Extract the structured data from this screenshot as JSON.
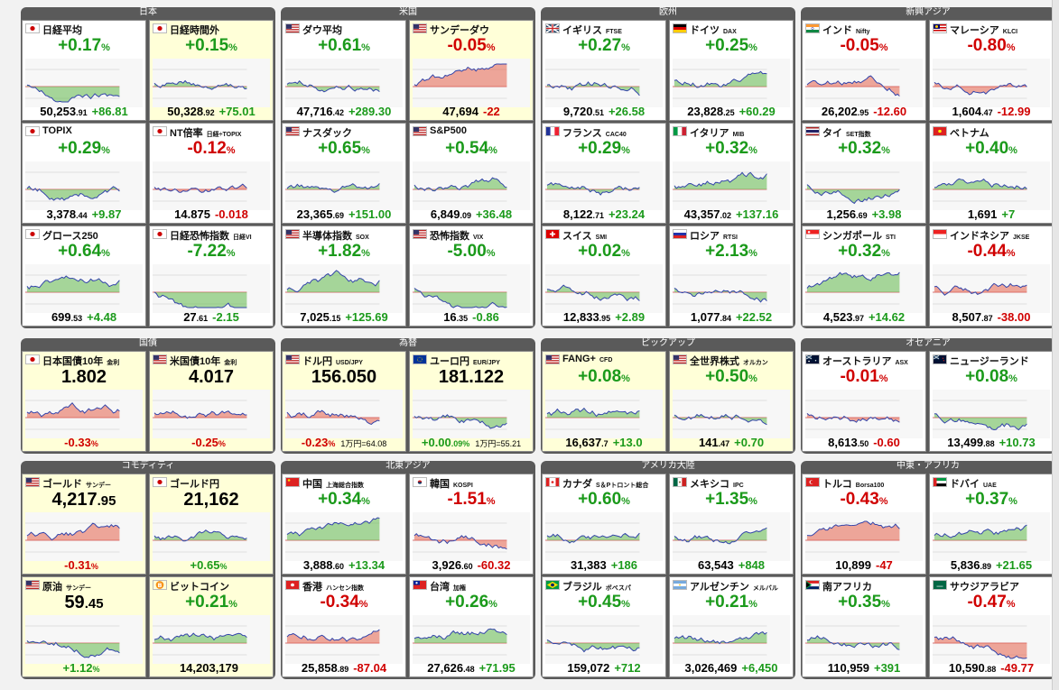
{
  "groups": [
    {
      "title": "日本",
      "tiles": [
        {
          "name": "日経平均",
          "suffix": "",
          "flag": "jp",
          "pct": "+0.17",
          "unit": "%",
          "dir": "up",
          "i": "50,253",
          "d": ".91",
          "ch": "+86.81",
          "cd": "up",
          "sub": ""
        },
        {
          "name": "日経時間外",
          "suffix": "",
          "flag": "jp",
          "pct": "+0.15",
          "unit": "%",
          "dir": "up",
          "i": "50,328",
          "d": ".92",
          "ch": "+75.01",
          "cd": "up",
          "sub": ""
        },
        {
          "name": "TOPIX",
          "suffix": "",
          "flag": "jp",
          "pct": "+0.29",
          "unit": "%",
          "dir": "up",
          "i": "3,378",
          "d": ".44",
          "ch": "+9.87",
          "cd": "up",
          "sub": ""
        },
        {
          "name": "NT倍率",
          "suffix": "日経÷TOPIX",
          "flag": "jp",
          "pct": "-0.12",
          "unit": "%",
          "dir": "dn",
          "i": "14.875",
          "d": "",
          "ch": "-0.018",
          "cd": "dn",
          "sub": ""
        },
        {
          "name": "グロース250",
          "suffix": "",
          "flag": "jp",
          "pct": "+0.64",
          "unit": "%",
          "dir": "up",
          "i": "699",
          "d": ".53",
          "ch": "+4.48",
          "cd": "up",
          "sub": ""
        },
        {
          "name": "日経恐怖指数",
          "suffix": "日経VI",
          "flag": "jp",
          "pct": "-7.22",
          "unit": "%",
          "dir": "up",
          "i": "27",
          "d": ".61",
          "ch": "-2.15",
          "cd": "up",
          "sub": ""
        }
      ]
    },
    {
      "title": "米国",
      "tiles": [
        {
          "name": "ダウ平均",
          "suffix": "",
          "flag": "us",
          "pct": "+0.61",
          "unit": "%",
          "dir": "up",
          "i": "47,716",
          "d": ".42",
          "ch": "+289.30",
          "cd": "up",
          "sub": ""
        },
        {
          "name": "サンデーダウ",
          "suffix": "",
          "flag": "us",
          "pct": "-0.05",
          "unit": "%",
          "dir": "dn",
          "i": "47,694",
          "d": "",
          "ch": "-22",
          "cd": "dn",
          "sub": ""
        },
        {
          "name": "ナスダック",
          "suffix": "",
          "flag": "us",
          "pct": "+0.65",
          "unit": "%",
          "dir": "up",
          "i": "23,365",
          "d": ".69",
          "ch": "+151.00",
          "cd": "up",
          "sub": ""
        },
        {
          "name": "S&P500",
          "suffix": "",
          "flag": "us",
          "pct": "+0.54",
          "unit": "%",
          "dir": "up",
          "i": "6,849",
          "d": ".09",
          "ch": "+36.48",
          "cd": "up",
          "sub": ""
        },
        {
          "name": "半導体指数",
          "suffix": "SOX",
          "flag": "us",
          "pct": "+1.82",
          "unit": "%",
          "dir": "up",
          "i": "7,025",
          "d": ".15",
          "ch": "+125.69",
          "cd": "up",
          "sub": ""
        },
        {
          "name": "恐怖指数",
          "suffix": "VIX",
          "flag": "us",
          "pct": "-5.00",
          "unit": "%",
          "dir": "up",
          "i": "16",
          "d": ".35",
          "ch": "-0.86",
          "cd": "up",
          "sub": ""
        }
      ]
    },
    {
      "title": "欧州",
      "tiles": [
        {
          "name": "イギリス",
          "suffix": "FTSE",
          "flag": "gb",
          "pct": "+0.27",
          "unit": "%",
          "dir": "up",
          "i": "9,720",
          "d": ".51",
          "ch": "+26.58",
          "cd": "up",
          "sub": ""
        },
        {
          "name": "ドイツ",
          "suffix": "DAX",
          "flag": "de",
          "pct": "+0.25",
          "unit": "%",
          "dir": "up",
          "i": "23,828",
          "d": ".25",
          "ch": "+60.29",
          "cd": "up",
          "sub": ""
        },
        {
          "name": "フランス",
          "suffix": "CAC40",
          "flag": "fr",
          "pct": "+0.29",
          "unit": "%",
          "dir": "up",
          "i": "8,122",
          "d": ".71",
          "ch": "+23.24",
          "cd": "up",
          "sub": ""
        },
        {
          "name": "イタリア",
          "suffix": "MIB",
          "flag": "it",
          "pct": "+0.32",
          "unit": "%",
          "dir": "up",
          "i": "43,357",
          "d": ".02",
          "ch": "+137.16",
          "cd": "up",
          "sub": ""
        },
        {
          "name": "スイス",
          "suffix": "SMI",
          "flag": "ch",
          "pct": "+0.02",
          "unit": "%",
          "dir": "up",
          "i": "12,833",
          "d": ".95",
          "ch": "+2.89",
          "cd": "up",
          "sub": ""
        },
        {
          "name": "ロシア",
          "suffix": "RTSI",
          "flag": "ru",
          "pct": "+2.13",
          "unit": "%",
          "dir": "up",
          "i": "1,077",
          "d": ".84",
          "ch": "+22.52",
          "cd": "up",
          "sub": ""
        }
      ]
    },
    {
      "title": "新興アジア",
      "tiles": [
        {
          "name": "インド",
          "suffix": "Nifty",
          "flag": "in",
          "pct": "-0.05",
          "unit": "%",
          "dir": "dn",
          "i": "26,202",
          "d": ".95",
          "ch": "-12.60",
          "cd": "dn",
          "sub": ""
        },
        {
          "name": "マレーシア",
          "suffix": "KLCI",
          "flag": "my",
          "pct": "-0.80",
          "unit": "%",
          "dir": "dn",
          "i": "1,604",
          "d": ".47",
          "ch": "-12.99",
          "cd": "dn",
          "sub": ""
        },
        {
          "name": "タイ",
          "suffix": "SET指数",
          "flag": "th",
          "pct": "+0.32",
          "unit": "%",
          "dir": "up",
          "i": "1,256",
          "d": ".69",
          "ch": "+3.98",
          "cd": "up",
          "sub": ""
        },
        {
          "name": "ベトナム",
          "suffix": "",
          "flag": "vn",
          "pct": "+0.40",
          "unit": "%",
          "dir": "up",
          "i": "1,691",
          "d": "",
          "ch": "+7",
          "cd": "up",
          "sub": ""
        },
        {
          "name": "シンガポール",
          "suffix": "STI",
          "flag": "sg",
          "pct": "+0.32",
          "unit": "%",
          "dir": "up",
          "i": "4,523",
          "d": ".97",
          "ch": "+14.62",
          "cd": "up",
          "sub": ""
        },
        {
          "name": "インドネシア",
          "suffix": "JKSE",
          "flag": "id",
          "pct": "-0.44",
          "unit": "%",
          "dir": "dn",
          "i": "8,507",
          "d": ".87",
          "ch": "-38.00",
          "cd": "dn",
          "sub": ""
        }
      ]
    },
    {
      "title": "国債",
      "tiles": [
        {
          "name": "日本国債10年",
          "suffix": "金利",
          "flag": "jp",
          "lvl": "1.802",
          "i": "-0.33",
          "d": "",
          "unit2": "%",
          "ch": "",
          "cd": "dn",
          "sub": ""
        },
        {
          "name": "米国債10年",
          "suffix": "金利",
          "flag": "us",
          "lvl": "4.017",
          "i": "-0.25",
          "d": "",
          "unit2": "%",
          "ch": "",
          "cd": "dn",
          "sub": ""
        }
      ]
    },
    {
      "title": "為替",
      "tiles": [
        {
          "name": "ドル円",
          "suffix": "USD/JPY",
          "flag": "us",
          "lvl": "156.050",
          "i": "-0.23",
          "d": "",
          "unit2": "%",
          "ch": "",
          "cd": "dn",
          "sub": "1万円=64.08"
        },
        {
          "name": "ユーロ円",
          "suffix": "EUR/JPY",
          "flag": "eu",
          "lvl": "181.122",
          "i": "+0.00",
          "d": ".09",
          "unit2": "%",
          "ch": "",
          "cd": "up",
          "sub": "1万円=55.21"
        }
      ]
    },
    {
      "title": "ピックアップ",
      "tiles": [
        {
          "name": "FANG+",
          "suffix": "CFD",
          "flag": "us",
          "pct": "+0.08",
          "unit": "%",
          "dir": "up",
          "i": "16,637",
          "d": ".7",
          "ch": "+13.0",
          "cd": "up",
          "sub": ""
        },
        {
          "name": "全世界株式",
          "suffix": "オルカン",
          "flag": "us",
          "pct": "+0.50",
          "unit": "%",
          "dir": "up",
          "i": "141",
          "d": ".47",
          "ch": "+0.70",
          "cd": "up",
          "sub": ""
        }
      ]
    },
    {
      "title": "オセアニア",
      "tiles": [
        {
          "name": "オーストラリア",
          "suffix": "ASX",
          "flag": "au",
          "pct": "-0.01",
          "unit": "%",
          "dir": "dn",
          "i": "8,613",
          "d": ".50",
          "ch": "-0.60",
          "cd": "dn",
          "sub": ""
        },
        {
          "name": "ニュージーランド",
          "suffix": "",
          "flag": "nz",
          "pct": "+0.08",
          "unit": "%",
          "dir": "up",
          "i": "13,499",
          "d": ".88",
          "ch": "+10.73",
          "cd": "up",
          "sub": ""
        }
      ]
    },
    {
      "title": "コモディティ",
      "tiles": [
        {
          "name": "ゴールド",
          "suffix": "サンデー",
          "flag": "us",
          "lvl": "4,217",
          "lvld": ".95",
          "i": "-0.31",
          "d": "",
          "unit2": "%",
          "ch": "",
          "cd": "dn",
          "sub": ""
        },
        {
          "name": "ゴールド円",
          "suffix": "",
          "flag": "jp",
          "lvl": "21,162",
          "i": "+0.65",
          "d": "",
          "unit2": "%",
          "ch": "",
          "cd": "up",
          "sub": ""
        },
        {
          "name": "原油",
          "suffix": "サンデー",
          "flag": "us",
          "lvl": "59",
          "lvld": ".45",
          "i": "+1.12",
          "d": "",
          "unit2": "%",
          "ch": "",
          "cd": "up",
          "sub": ""
        },
        {
          "name": "ビットコイン",
          "suffix": "",
          "flag": "btc",
          "pct": "+0.21",
          "unit": "%",
          "dir": "up",
          "i": "14,203,179",
          "d": "",
          "ch": "",
          "cd": "nt",
          "sub": ""
        }
      ]
    },
    {
      "title": "北東アジア",
      "tiles": [
        {
          "name": "中国",
          "suffix": "上海総合指数",
          "flag": "cn",
          "pct": "+0.34",
          "unit": "%",
          "dir": "up",
          "i": "3,888",
          "d": ".60",
          "ch": "+13.34",
          "cd": "up",
          "sub": ""
        },
        {
          "name": "韓国",
          "suffix": "KOSPI",
          "flag": "kr",
          "pct": "-1.51",
          "unit": "%",
          "dir": "dn",
          "i": "3,926",
          "d": ".60",
          "ch": "-60.32",
          "cd": "dn",
          "sub": ""
        },
        {
          "name": "香港",
          "suffix": "ハンセン指数",
          "flag": "hk",
          "pct": "-0.34",
          "unit": "%",
          "dir": "dn",
          "i": "25,858",
          "d": ".89",
          "ch": "-87.04",
          "cd": "dn",
          "sub": ""
        },
        {
          "name": "台湾",
          "suffix": "加権",
          "flag": "tw",
          "pct": "+0.26",
          "unit": "%",
          "dir": "up",
          "i": "27,626",
          "d": ".48",
          "ch": "+71.95",
          "cd": "up",
          "sub": ""
        }
      ]
    },
    {
      "title": "アメリカ大陸",
      "tiles": [
        {
          "name": "カナダ",
          "suffix": "S＆Pトロント総合",
          "flag": "ca",
          "pct": "+0.60",
          "unit": "%",
          "dir": "up",
          "i": "31,383",
          "d": "",
          "ch": "+186",
          "cd": "up",
          "sub": ""
        },
        {
          "name": "メキシコ",
          "suffix": "IPC",
          "flag": "mx",
          "pct": "+1.35",
          "unit": "%",
          "dir": "up",
          "i": "63,543",
          "d": "",
          "ch": "+848",
          "cd": "up",
          "sub": ""
        },
        {
          "name": "ブラジル",
          "suffix": "ボベスパ",
          "flag": "br",
          "pct": "+0.45",
          "unit": "%",
          "dir": "up",
          "i": "159,072",
          "d": "",
          "ch": "+712",
          "cd": "up",
          "sub": ""
        },
        {
          "name": "アルゼンチン",
          "suffix": "メルバル",
          "flag": "ar",
          "pct": "+0.21",
          "unit": "%",
          "dir": "up",
          "i": "3,026,469",
          "d": "",
          "ch": "+6,450",
          "cd": "up",
          "sub": ""
        }
      ]
    },
    {
      "title": "中東・アフリカ",
      "tiles": [
        {
          "name": "トルコ",
          "suffix": "Borsa100",
          "flag": "tr",
          "pct": "-0.43",
          "unit": "%",
          "dir": "dn",
          "i": "10,899",
          "d": "",
          "ch": "-47",
          "cd": "dn",
          "sub": ""
        },
        {
          "name": "ドバイ",
          "suffix": "UAE",
          "flag": "ae",
          "pct": "+0.37",
          "unit": "%",
          "dir": "up",
          "i": "5,836",
          "d": ".89",
          "ch": "+21.65",
          "cd": "up",
          "sub": ""
        },
        {
          "name": "南アフリカ",
          "suffix": "",
          "flag": "za",
          "pct": "+0.35",
          "unit": "%",
          "dir": "up",
          "i": "110,959",
          "d": "",
          "ch": "+391",
          "cd": "up",
          "sub": ""
        },
        {
          "name": "サウジアラビア",
          "suffix": "",
          "flag": "sa",
          "pct": "-0.47",
          "unit": "%",
          "dir": "dn",
          "i": "10,590",
          "d": ".88",
          "ch": "-49.77",
          "cd": "dn",
          "sub": ""
        }
      ]
    }
  ],
  "colors": {
    "up": "#1b9a1b",
    "down": "#d00000",
    "highlight": "#ffffd8",
    "panel": "#5a5a5a"
  }
}
